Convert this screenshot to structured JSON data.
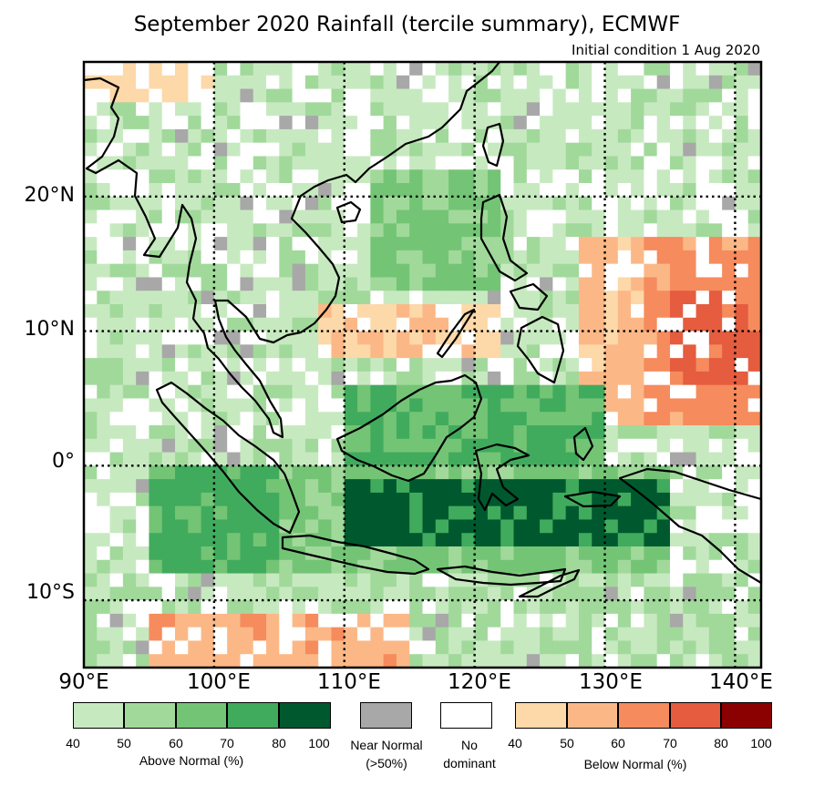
{
  "title": "September 2020 Rainfall (tercile summary), ECMWF",
  "subtitle": "Initial condition 1 Aug 2020",
  "map": {
    "lat_labels": [
      "20°N",
      "10°N",
      "0°",
      "10°S"
    ],
    "lon_labels": [
      "90°E",
      "100°E",
      "110°E",
      "120°E",
      "130°E",
      "140°E"
    ],
    "lon_range": [
      90,
      142
    ],
    "lat_range": [
      -15,
      30
    ]
  },
  "legend": {
    "above": {
      "caption": "Above Normal (%)",
      "ticks": [
        "40",
        "50",
        "60",
        "70",
        "80",
        "100"
      ],
      "colors": [
        "#c7e9c0",
        "#a1d99b",
        "#74c476",
        "#41ab5d",
        "#00592e"
      ]
    },
    "near": {
      "caption": "Near Normal",
      "caption2": "(>50%)",
      "color": "#a8a8a8"
    },
    "none": {
      "caption": "No",
      "caption2": "dominant",
      "color": "#ffffff"
    },
    "below": {
      "caption": "Below Normal (%)",
      "ticks": [
        "40",
        "50",
        "60",
        "70",
        "80",
        "100"
      ],
      "colors": [
        "#fdd8a8",
        "#fbb886",
        "#f68b5d",
        "#e55c3f",
        "#8b0000"
      ]
    }
  }
}
